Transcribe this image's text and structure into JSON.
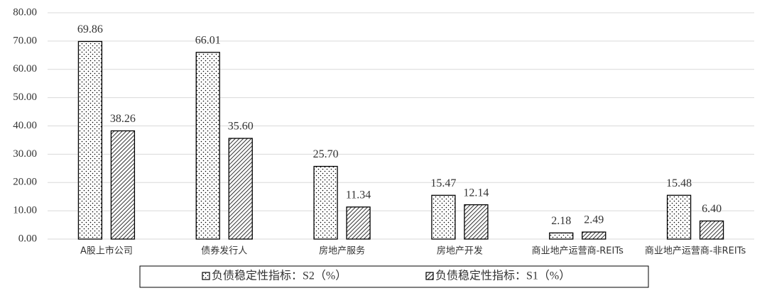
{
  "chart_data": {
    "type": "bar",
    "categories": [
      "A股上市公司",
      "债券发行人",
      "房地产服务",
      "房地产开发",
      "商业地产运营商-REITs",
      "商业地产运营商-非REITs"
    ],
    "series": [
      {
        "name": "负债稳定性指标：S2（%）",
        "color": "#000000",
        "pattern": "dots",
        "values": [
          69.86,
          66.01,
          25.7,
          15.47,
          2.18,
          15.48
        ],
        "value_labels": [
          "69.86",
          "66.01",
          "25.70",
          "15.47",
          "2.18",
          "15.48"
        ]
      },
      {
        "name": "负债稳定性指标：S1（%）",
        "color": "#000000",
        "pattern": "hatch",
        "values": [
          38.26,
          35.6,
          11.34,
          12.14,
          2.49,
          6.4
        ],
        "value_labels": [
          "38.26",
          "35.60",
          "11.34",
          "12.14",
          "2.49",
          "6.40"
        ]
      }
    ],
    "ylim": [
      0,
      80
    ],
    "yticks": [
      {
        "value": 0,
        "label": "0.00"
      },
      {
        "value": 10,
        "label": "10.00"
      },
      {
        "value": 20,
        "label": "20.00"
      },
      {
        "value": 30,
        "label": "30.00"
      },
      {
        "value": 40,
        "label": "40.00"
      },
      {
        "value": 50,
        "label": "50.00"
      },
      {
        "value": 60,
        "label": "60.00"
      },
      {
        "value": 70,
        "label": "70.00"
      },
      {
        "value": 80,
        "label": "80.00"
      }
    ],
    "grid": true,
    "legend": "bottom"
  }
}
